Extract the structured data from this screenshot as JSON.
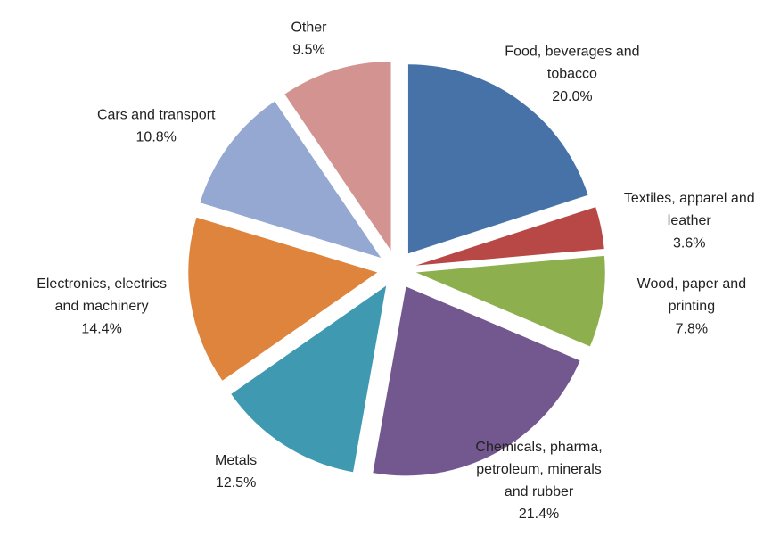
{
  "chart_data": {
    "type": "pie",
    "categories": [
      "Food, beverages and tobacco",
      "Textiles, apparel and leather",
      "Wood, paper and printing",
      "Chemicals, pharma, petroleum, minerals and rubber",
      "Metals",
      "Electronics, electrics and machinery",
      "Cars and transport",
      "Other"
    ],
    "values": [
      20.0,
      3.6,
      7.8,
      21.4,
      12.5,
      14.4,
      10.8,
      9.5
    ],
    "value_labels": [
      "20.0%",
      "3.6%",
      "7.8%",
      "21.4%",
      "12.5%",
      "14.4%",
      "10.8%",
      "9.5%"
    ],
    "colors": [
      "#4672a8",
      "#b84846",
      "#8daf4e",
      "#735890",
      "#3f99b0",
      "#de843c",
      "#94a8d2",
      "#d39391"
    ]
  }
}
